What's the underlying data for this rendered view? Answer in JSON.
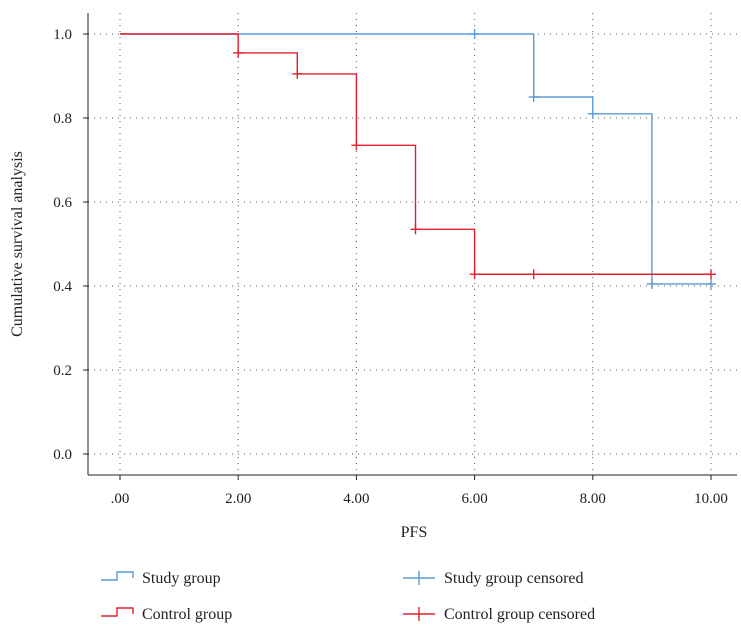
{
  "chart_data": {
    "type": "line",
    "subtype": "kaplan-meier-step",
    "xlabel": "PFS",
    "ylabel": "Cumulative survival analysis",
    "xlim": [
      -0.5,
      10.4
    ],
    "ylim": [
      -0.05,
      1.05
    ],
    "x_ticks": [
      0,
      2,
      4,
      6,
      8,
      10
    ],
    "x_tick_labels": [
      ".00",
      "2.00",
      "4.00",
      "6.00",
      "8.00",
      "10.00"
    ],
    "y_ticks": [
      0.0,
      0.2,
      0.4,
      0.6,
      0.8,
      1.0
    ],
    "y_tick_labels": [
      "0.0",
      "0.2",
      "0.4",
      "0.6",
      "0.8",
      "1.0"
    ],
    "grid": "dotted",
    "legend_position": "bottom",
    "series": [
      {
        "name": "Study group",
        "color": "#5b9bd5",
        "steps": [
          [
            0,
            1.0
          ],
          [
            7,
            0.85
          ],
          [
            8,
            0.81
          ],
          [
            9,
            0.405
          ],
          [
            10,
            0.405
          ]
        ],
        "censored": [
          [
            6,
            1.0
          ],
          [
            7,
            0.85
          ],
          [
            8,
            0.81
          ],
          [
            9,
            0.405
          ],
          [
            10,
            0.405
          ]
        ]
      },
      {
        "name": "Control group",
        "color": "#e0202e",
        "steps": [
          [
            0,
            1.0
          ],
          [
            2,
            0.955
          ],
          [
            3,
            0.905
          ],
          [
            4,
            0.735
          ],
          [
            5,
            0.535
          ],
          [
            6,
            0.428
          ],
          [
            10,
            0.428
          ]
        ],
        "censored": [
          [
            2,
            0.955
          ],
          [
            3,
            0.905
          ],
          [
            4,
            0.735
          ],
          [
            5,
            0.535
          ],
          [
            6,
            0.428
          ],
          [
            7,
            0.428
          ],
          [
            10,
            0.428
          ]
        ]
      }
    ],
    "legend": [
      {
        "label": "Study group",
        "symbol": "step",
        "color": "#5b9bd5"
      },
      {
        "label": "Study group censored",
        "symbol": "cross",
        "color": "#5b9bd5"
      },
      {
        "label": "Control group",
        "symbol": "step",
        "color": "#e0202e"
      },
      {
        "label": "Control group censored",
        "symbol": "cross",
        "color": "#e0202e"
      }
    ]
  }
}
